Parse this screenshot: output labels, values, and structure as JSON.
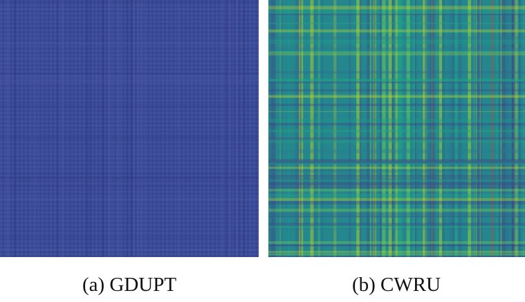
{
  "panels": [
    {
      "caption": "(a) GDUPT"
    },
    {
      "caption": "(b) CWRU"
    }
  ]
}
